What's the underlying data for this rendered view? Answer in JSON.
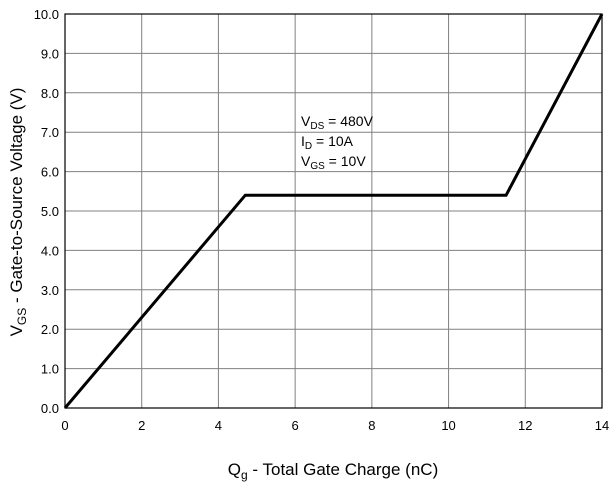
{
  "chart_data": {
    "type": "line",
    "xlabel": {
      "main": "Q",
      "sub": "g",
      "rest": " - Total Gate Charge (nC)"
    },
    "ylabel": {
      "main": "V",
      "sub": "GS",
      "rest": " - Gate-to-Source Voltage (V)"
    },
    "xlim": [
      0,
      14
    ],
    "ylim": [
      0,
      10
    ],
    "x_ticks": [
      0,
      2,
      4,
      6,
      8,
      10,
      12,
      14
    ],
    "x_tick_labels": [
      "0",
      "2",
      "4",
      "6",
      "8",
      "10",
      "12",
      "14"
    ],
    "y_ticks": [
      0,
      1,
      2,
      3,
      4,
      5,
      6,
      7,
      8,
      9,
      10
    ],
    "y_tick_labels": [
      "0.0",
      "1.0",
      "2.0",
      "3.0",
      "4.0",
      "5.0",
      "6.0",
      "7.0",
      "8.0",
      "9.0",
      "10.0"
    ],
    "grid": true,
    "series": [
      {
        "x": [
          0,
          4.7,
          11.5,
          14
        ],
        "y": [
          0,
          5.4,
          5.4,
          10
        ]
      }
    ],
    "annotations": [
      {
        "main": "V",
        "sub": "DS",
        "rest": " = 480V"
      },
      {
        "main": "I",
        "sub": "D",
        "rest": " = 10A"
      },
      {
        "main": "V",
        "sub": "GS",
        "rest": " = 10V"
      }
    ]
  }
}
